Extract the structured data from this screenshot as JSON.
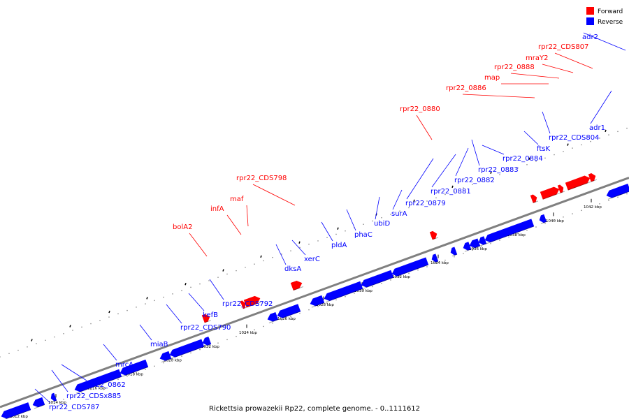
{
  "caption": "Rickettsia prowazekii Rp22, complete genome. - 0..1111612",
  "legend": [
    {
      "label": "Forward",
      "color": "#ff0000"
    },
    {
      "label": "Reverse",
      "color": "#0000ff"
    }
  ],
  "colors": {
    "forward": "#ff0000",
    "reverse": "#0000ff",
    "backbone": "#808080"
  },
  "ticks": [
    {
      "label": "1012 kbp"
    },
    {
      "label": "1014 kbp"
    },
    {
      "label": "1016 kbp"
    },
    {
      "label": "1018 kbp"
    },
    {
      "label": "1020 kbp"
    },
    {
      "label": "1022 kbp"
    },
    {
      "label": "1024 kbp"
    },
    {
      "label": "1026 kbp"
    },
    {
      "label": "1028 kbp"
    },
    {
      "label": "1030 kbp"
    },
    {
      "label": "1032 kbp"
    },
    {
      "label": "1034 kbp"
    },
    {
      "label": "1036 kbp"
    },
    {
      "label": "1038 kbp"
    },
    {
      "label": "1040 kbp"
    },
    {
      "label": "1042 kbp"
    }
  ],
  "genes": [
    {
      "name": "rpr22_CDS787",
      "strand": "reverse"
    },
    {
      "name": "rpr22_CDSx885",
      "strand": "reverse"
    },
    {
      "name": "rpr22_0862",
      "strand": "reverse"
    },
    {
      "name": "mrcA",
      "strand": "reverse"
    },
    {
      "name": "miaB",
      "strand": "reverse"
    },
    {
      "name": "rpr22_CDS790",
      "strand": "reverse"
    },
    {
      "name": "kefB",
      "strand": "reverse"
    },
    {
      "name": "rpr22_CDS792",
      "strand": "reverse"
    },
    {
      "name": "bolA2",
      "strand": "forward"
    },
    {
      "name": "infA",
      "strand": "forward"
    },
    {
      "name": "maf",
      "strand": "forward"
    },
    {
      "name": "rpr22_CDS798",
      "strand": "forward"
    },
    {
      "name": "dksA",
      "strand": "reverse"
    },
    {
      "name": "xerC",
      "strand": "reverse"
    },
    {
      "name": "pldA",
      "strand": "reverse"
    },
    {
      "name": "phaC",
      "strand": "reverse"
    },
    {
      "name": "ubiD",
      "strand": "reverse"
    },
    {
      "name": "surA",
      "strand": "reverse"
    },
    {
      "name": "rpr22_0879",
      "strand": "reverse"
    },
    {
      "name": "rpr22_0880",
      "strand": "forward"
    },
    {
      "name": "rpr22_0881",
      "strand": "reverse"
    },
    {
      "name": "rpr22_0882",
      "strand": "reverse"
    },
    {
      "name": "rpr22_0883",
      "strand": "reverse"
    },
    {
      "name": "rpr22_0884",
      "strand": "reverse"
    },
    {
      "name": "ftsK",
      "strand": "reverse"
    },
    {
      "name": "rpr22_CDS804",
      "strand": "reverse"
    },
    {
      "name": "adr1",
      "strand": "reverse"
    },
    {
      "name": "rpr22_0886",
      "strand": "forward"
    },
    {
      "name": "map",
      "strand": "forward"
    },
    {
      "name": "rpr22_0888",
      "strand": "forward"
    },
    {
      "name": "mraY2",
      "strand": "forward"
    },
    {
      "name": "rpr22_CDS807",
      "strand": "forward"
    },
    {
      "name": "adr2",
      "strand": "reverse"
    }
  ]
}
